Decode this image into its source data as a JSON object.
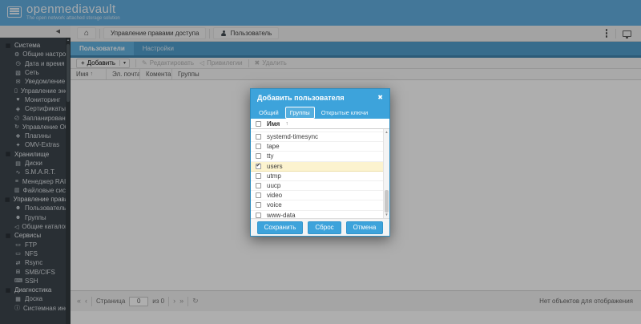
{
  "colors": {
    "brand_blue": "#5dacdf",
    "tab_strip": "#4b9ccb",
    "active_tab": "#5fb0e0",
    "modal_header": "#3da3db",
    "selected_row": "#fcf3cf",
    "sidebar_bg": "#363f47"
  },
  "header": {
    "title": "openmediavault",
    "tagline": "The open network attached storage solution"
  },
  "icons": {
    "collapse": "◀",
    "home": "⌂",
    "add": "+",
    "caret": "▾",
    "edit": "✎",
    "privileges": "◁",
    "delete": "✖",
    "sort_asc": "↑",
    "pg_first": "«",
    "pg_prev": "‹",
    "pg_next": "›",
    "pg_last": "»",
    "refresh": "↻",
    "close": "✖",
    "scroll_up": "▲",
    "scroll_down": "▼"
  },
  "sidebar": {
    "sections": [
      {
        "label": "Система",
        "icon_glyph": "▦",
        "items": [
          {
            "label": "Общие настройки",
            "icon": "sliders-icon",
            "glyph": "⚙"
          },
          {
            "label": "Дата и время",
            "icon": "clock-icon",
            "glyph": "◷"
          },
          {
            "label": "Сеть",
            "icon": "network-icon",
            "glyph": "▧"
          },
          {
            "label": "Уведомление",
            "icon": "envelope-icon",
            "glyph": "✉"
          },
          {
            "label": "Управление энергопс",
            "icon": "power-icon",
            "glyph": "▯"
          },
          {
            "label": "Мониторинг",
            "icon": "monitoring-icon",
            "glyph": "♥"
          },
          {
            "label": "Сертификаты",
            "icon": "certificate-icon",
            "glyph": "◈"
          },
          {
            "label": "Запланированные зад",
            "icon": "scheduled-jobs-icon",
            "glyph": "◴"
          },
          {
            "label": "Управление Обновле",
            "icon": "update-icon",
            "glyph": "↻"
          },
          {
            "label": "Плагины",
            "icon": "plugins-icon",
            "glyph": "❖"
          },
          {
            "label": "OMV-Extras",
            "icon": "extras-icon",
            "glyph": "✦"
          }
        ]
      },
      {
        "label": "Хранилище",
        "icon_glyph": "▦",
        "items": [
          {
            "label": "Диски",
            "icon": "disk-icon",
            "glyph": "▤"
          },
          {
            "label": "S.M.A.R.T.",
            "icon": "smart-icon",
            "glyph": "∿"
          },
          {
            "label": "Менеджер RAID",
            "icon": "raid-icon",
            "glyph": "≡"
          },
          {
            "label": "Файловые системы",
            "icon": "filesystem-icon",
            "glyph": "▥"
          }
        ]
      },
      {
        "label": "Управление правами до",
        "icon_glyph": "▦",
        "items": [
          {
            "label": "Пользователь",
            "icon": "user-icon",
            "glyph": "☻"
          },
          {
            "label": "Группы",
            "icon": "groups-icon",
            "glyph": "☻"
          },
          {
            "label": "Общие каталоги",
            "icon": "shared-folder-icon",
            "glyph": "◁"
          }
        ]
      },
      {
        "label": "Сервисы",
        "icon_glyph": "▦",
        "items": [
          {
            "label": "FTP",
            "icon": "ftp-icon",
            "glyph": "▭"
          },
          {
            "label": "NFS",
            "icon": "nfs-icon",
            "glyph": "▭"
          },
          {
            "label": "Rsync",
            "icon": "rsync-icon",
            "glyph": "⇄"
          },
          {
            "label": "SMB/CIFS",
            "icon": "smb-icon",
            "glyph": "⊞"
          },
          {
            "label": "SSH",
            "icon": "ssh-icon",
            "glyph": "⌨"
          }
        ]
      },
      {
        "label": "Диагностика",
        "icon_glyph": "▦",
        "items": [
          {
            "label": "Доска",
            "icon": "dashboard-icon",
            "glyph": "▦"
          },
          {
            "label": "Системная информаци",
            "icon": "system-info-icon",
            "glyph": "ⓘ"
          }
        ]
      }
    ]
  },
  "breadcrumb": {
    "items": [
      "Управление правами доступа",
      "Пользователь"
    ]
  },
  "main": {
    "tabs": [
      {
        "label": "Пользователи"
      },
      {
        "label": "Настройки"
      }
    ],
    "toolbar": {
      "add": "Добавить",
      "edit": "Редактировать",
      "privileges": "Привилегии",
      "delete": "Удалить"
    },
    "grid": {
      "columns": [
        "Имя",
        "Эл. почта",
        "Коментарий",
        "Группы"
      ]
    },
    "pager": {
      "page_label": "Страница",
      "page_value": "0",
      "of_label": "из 0",
      "status": "Нет объектов для отображения"
    }
  },
  "modal": {
    "title": "Добавить пользователя",
    "tabs": [
      "Общий",
      "Группы",
      "Открытые ключи"
    ],
    "active_tab": "Группы",
    "list": {
      "column": "Имя",
      "rows": [
        {
          "name": "systemd-timesync",
          "checked": false
        },
        {
          "name": "tape",
          "checked": false
        },
        {
          "name": "tty",
          "checked": false
        },
        {
          "name": "users",
          "checked": true
        },
        {
          "name": "utmp",
          "checked": false
        },
        {
          "name": "uucp",
          "checked": false
        },
        {
          "name": "video",
          "checked": false
        },
        {
          "name": "voice",
          "checked": false
        },
        {
          "name": "www-data",
          "checked": false
        }
      ]
    },
    "buttons": [
      "Сохранить",
      "Сброс",
      "Отмена"
    ]
  }
}
